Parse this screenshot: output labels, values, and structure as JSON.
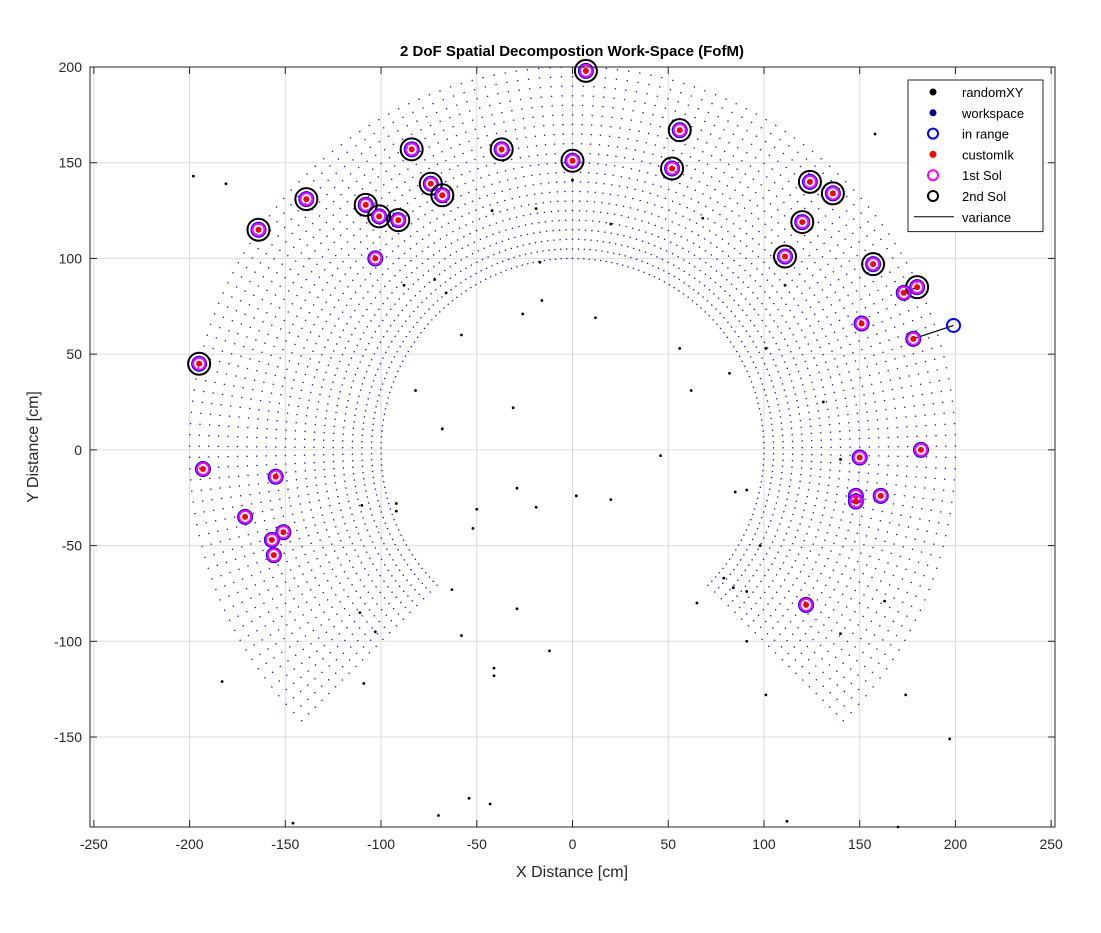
{
  "chart_data": {
    "type": "scatter",
    "title": "2 DoF Spatial Decompostion Work-Space (FofM)",
    "xlabel": "X Distance [cm]",
    "ylabel": "Y Distance [cm]",
    "xlim": [
      -252,
      252
    ],
    "ylim": [
      -197,
      200
    ],
    "xticks": [
      -250,
      -200,
      -150,
      -100,
      -50,
      0,
      50,
      100,
      150,
      200,
      250
    ],
    "yticks": [
      -150,
      -100,
      -50,
      0,
      50,
      100,
      150,
      200
    ],
    "grid": true,
    "legend_position": "top-right",
    "legend": [
      {
        "name": "randomXY",
        "marker": "dot",
        "color": "#000000"
      },
      {
        "name": "workspace",
        "marker": "dot",
        "color": "#00008b"
      },
      {
        "name": "in range",
        "marker": "circle",
        "color": "#0000ff"
      },
      {
        "name": "customIk",
        "marker": "dot",
        "color": "#ff0000"
      },
      {
        "name": "1st Sol",
        "marker": "circle",
        "color": "#ff00ff"
      },
      {
        "name": "2nd Sol",
        "marker": "circle",
        "color": "#000000"
      },
      {
        "name": "variance",
        "marker": "line",
        "color": "#000000"
      }
    ],
    "workspace": {
      "description_visible": "polar grid of link-end positions",
      "inner_radius": 100,
      "outer_radius": 200,
      "radius_steps": 20,
      "angle_start_deg": -45,
      "angle_end_deg": 225,
      "angle_steps": 160
    },
    "randomXY": [
      [
        -198,
        143
      ],
      [
        -181,
        139
      ],
      [
        -42,
        125
      ],
      [
        -19,
        126
      ],
      [
        20,
        118
      ],
      [
        68,
        121
      ],
      [
        -88,
        86
      ],
      [
        -72,
        89
      ],
      [
        -66,
        82
      ],
      [
        -58,
        60
      ],
      [
        -26,
        71
      ],
      [
        -17,
        98
      ],
      [
        -16,
        78
      ],
      [
        0,
        141
      ],
      [
        12,
        69
      ],
      [
        56,
        53
      ],
      [
        62,
        31
      ],
      [
        82,
        40
      ],
      [
        101,
        53
      ],
      [
        111,
        86
      ],
      [
        131,
        25
      ],
      [
        140,
        -5
      ],
      [
        158,
        165
      ],
      [
        -82,
        31
      ],
      [
        -68,
        11
      ],
      [
        -31,
        22
      ],
      [
        -29,
        -20
      ],
      [
        -19,
        -30
      ],
      [
        2,
        -24
      ],
      [
        20,
        -26
      ],
      [
        46,
        -3
      ],
      [
        85,
        -22
      ],
      [
        91,
        -21
      ],
      [
        -110,
        -29
      ],
      [
        -92,
        -28
      ],
      [
        -92,
        -32
      ],
      [
        -52,
        -41
      ],
      [
        -50,
        -31
      ],
      [
        -63,
        -73
      ],
      [
        -29,
        -83
      ],
      [
        -58,
        -97
      ],
      [
        -41,
        -114
      ],
      [
        -41,
        -118
      ],
      [
        -12,
        -105
      ],
      [
        -111,
        -85
      ],
      [
        -103,
        -95
      ],
      [
        -109,
        -122
      ],
      [
        -183,
        -121
      ],
      [
        -146,
        -195
      ],
      [
        -70,
        -191
      ],
      [
        -54,
        -182
      ],
      [
        -43,
        -185
      ],
      [
        65,
        -80
      ],
      [
        79,
        -67
      ],
      [
        84,
        -72
      ],
      [
        91,
        -74
      ],
      [
        98,
        -50
      ],
      [
        91,
        -100
      ],
      [
        101,
        -128
      ],
      [
        112,
        -194
      ],
      [
        140,
        -96
      ],
      [
        163,
        -79
      ],
      [
        174,
        -128
      ],
      [
        197,
        -151
      ],
      [
        170,
        -197
      ]
    ],
    "solutions": [
      {
        "x": -195,
        "y": 45,
        "second": true
      },
      {
        "x": -164,
        "y": 115,
        "second": true
      },
      {
        "x": -139,
        "y": 131,
        "second": true
      },
      {
        "x": -108,
        "y": 128,
        "second": true
      },
      {
        "x": -101,
        "y": 122,
        "second": true
      },
      {
        "x": -91,
        "y": 120,
        "second": true
      },
      {
        "x": -84,
        "y": 157,
        "second": true
      },
      {
        "x": -74,
        "y": 139,
        "second": true
      },
      {
        "x": -68,
        "y": 133,
        "second": true
      },
      {
        "x": -37,
        "y": 157,
        "second": true
      },
      {
        "x": 0,
        "y": 151,
        "second": true
      },
      {
        "x": 7,
        "y": 198,
        "second": true
      },
      {
        "x": 52,
        "y": 147,
        "second": true
      },
      {
        "x": 56,
        "y": 167,
        "second": true
      },
      {
        "x": 111,
        "y": 101,
        "second": true
      },
      {
        "x": 120,
        "y": 119,
        "second": true
      },
      {
        "x": 124,
        "y": 140,
        "second": true
      },
      {
        "x": 136,
        "y": 134,
        "second": true
      },
      {
        "x": 157,
        "y": 97,
        "second": true
      },
      {
        "x": 180,
        "y": 85,
        "second": true
      },
      {
        "x": -103,
        "y": 100,
        "second": false
      },
      {
        "x": -193,
        "y": -10,
        "second": false
      },
      {
        "x": -155,
        "y": -14,
        "second": false
      },
      {
        "x": -171,
        "y": -35,
        "second": false
      },
      {
        "x": -151,
        "y": -43,
        "second": false
      },
      {
        "x": -157,
        "y": -47,
        "second": false
      },
      {
        "x": -156,
        "y": -55,
        "second": false
      },
      {
        "x": 173,
        "y": 82,
        "second": false
      },
      {
        "x": 151,
        "y": 66,
        "second": false
      },
      {
        "x": 178,
        "y": 58,
        "second": false
      },
      {
        "x": 150,
        "y": -4,
        "second": false
      },
      {
        "x": 182,
        "y": 0,
        "second": false
      },
      {
        "x": 148,
        "y": -24,
        "second": false
      },
      {
        "x": 148,
        "y": -27,
        "second": false
      },
      {
        "x": 161,
        "y": -24,
        "second": false
      },
      {
        "x": 122,
        "y": -81,
        "second": false
      }
    ],
    "in_range_only": [
      [
        199,
        65
      ]
    ],
    "variance_lines": [
      {
        "from": [
          199,
          65
        ],
        "to": [
          178,
          58
        ]
      },
      {
        "from": [
          180,
          85
        ],
        "to": [
          173,
          82
        ]
      }
    ]
  }
}
